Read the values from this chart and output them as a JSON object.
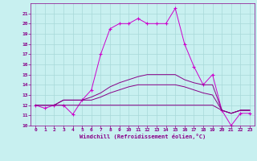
{
  "xlabel": "Windchill (Refroidissement éolien,°C)",
  "background_color": "#c8f0f0",
  "grid_color": "#a8d8d8",
  "line_color1": "#cc00cc",
  "line_color2": "#880088",
  "xlim": [
    -0.5,
    23.5
  ],
  "ylim": [
    10,
    22
  ],
  "xticks": [
    0,
    1,
    2,
    3,
    4,
    5,
    6,
    7,
    8,
    9,
    10,
    11,
    12,
    13,
    14,
    15,
    16,
    17,
    18,
    19,
    20,
    21,
    22,
    23
  ],
  "yticks": [
    10,
    11,
    12,
    13,
    14,
    15,
    16,
    17,
    18,
    19,
    20,
    21
  ],
  "hours": [
    0,
    1,
    2,
    3,
    4,
    5,
    6,
    7,
    8,
    9,
    10,
    11,
    12,
    13,
    14,
    15,
    16,
    17,
    18,
    19,
    20,
    21,
    22,
    23
  ],
  "line1": [
    12,
    11.7,
    12,
    12,
    11.1,
    12.5,
    13.5,
    17.0,
    19.5,
    20.0,
    20.0,
    20.5,
    20.0,
    20.0,
    20.0,
    21.5,
    18.0,
    15.8,
    14.0,
    15.0,
    11.5,
    10.0,
    11.2,
    11.2
  ],
  "line2": [
    12,
    12,
    12,
    12.5,
    12.5,
    12.5,
    12.8,
    13.2,
    13.8,
    14.2,
    14.5,
    14.8,
    15.0,
    15.0,
    15.0,
    15.0,
    14.5,
    14.2,
    14.0,
    14.0,
    11.5,
    11.2,
    11.5,
    11.5
  ],
  "line3": [
    12,
    12,
    12,
    12.5,
    12.5,
    12.5,
    12.5,
    12.8,
    13.2,
    13.5,
    13.8,
    14.0,
    14.0,
    14.0,
    14.0,
    14.0,
    13.8,
    13.5,
    13.2,
    13.0,
    11.5,
    11.2,
    11.5,
    11.5
  ],
  "line4": [
    12,
    12,
    12,
    12,
    12,
    12,
    12,
    12,
    12,
    12,
    12,
    12,
    12,
    12,
    12,
    12,
    12,
    12,
    12,
    12,
    11.5,
    11.2,
    11.5,
    11.5
  ]
}
